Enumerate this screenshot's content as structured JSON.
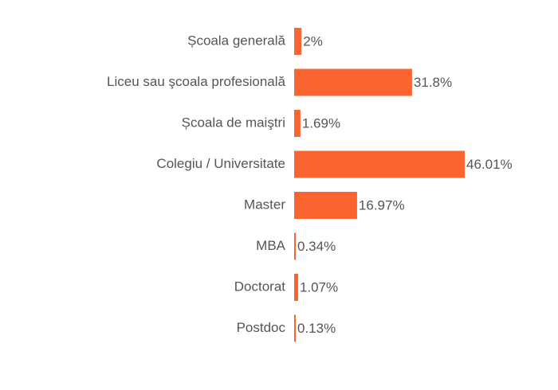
{
  "chart_data": {
    "type": "bar",
    "orientation": "horizontal",
    "color": "#fa6431",
    "categories": [
      "Școala generală",
      "Liceu sau şcoala profesională",
      "Școala de maiştri",
      "Colegiu / Universitate",
      "Master",
      "MBA",
      "Doctorat",
      "Postdoc"
    ],
    "values": [
      2,
      31.8,
      1.69,
      46.01,
      16.97,
      0.34,
      1.07,
      0.13
    ],
    "value_labels": [
      "2%",
      "31.8%",
      "1.69%",
      "46.01%",
      "16.97%",
      "0.34%",
      "1.07%",
      "0.13%"
    ]
  }
}
